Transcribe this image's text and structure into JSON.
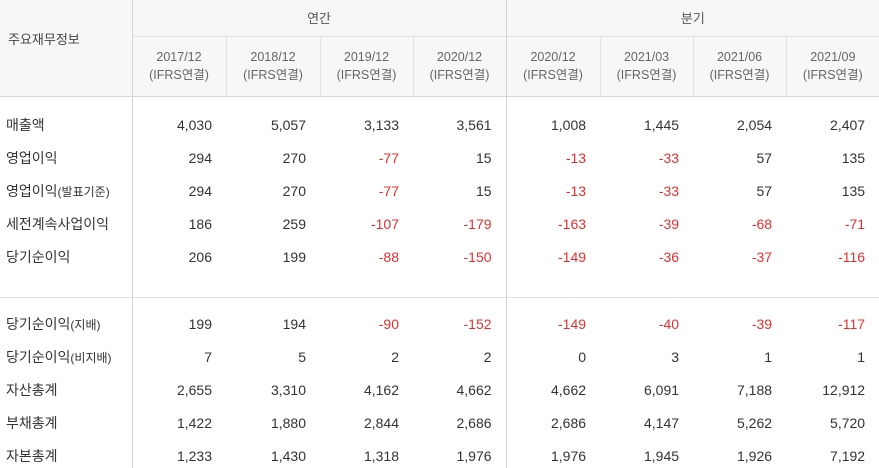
{
  "header": {
    "row_title": "주요재무정보",
    "annual_label": "연간",
    "quarterly_label": "분기",
    "periods": [
      {
        "date": "2017/12",
        "basis": "(IFRS연결)"
      },
      {
        "date": "2018/12",
        "basis": "(IFRS연결)"
      },
      {
        "date": "2019/12",
        "basis": "(IFRS연결)"
      },
      {
        "date": "2020/12",
        "basis": "(IFRS연결)"
      },
      {
        "date": "2020/12",
        "basis": "(IFRS연결)"
      },
      {
        "date": "2021/03",
        "basis": "(IFRS연결)"
      },
      {
        "date": "2021/06",
        "basis": "(IFRS연결)"
      },
      {
        "date": "2021/09",
        "basis": "(IFRS연결)"
      }
    ]
  },
  "rows_group1": [
    {
      "label": "매출액",
      "sub": "",
      "values": [
        "4,030",
        "5,057",
        "3,133",
        "3,561",
        "1,008",
        "1,445",
        "2,054",
        "2,407"
      ]
    },
    {
      "label": "영업이익",
      "sub": "",
      "values": [
        "294",
        "270",
        "-77",
        "15",
        "-13",
        "-33",
        "57",
        "135"
      ]
    },
    {
      "label": "영업이익",
      "sub": "(발표기준)",
      "values": [
        "294",
        "270",
        "-77",
        "15",
        "-13",
        "-33",
        "57",
        "135"
      ]
    },
    {
      "label": "세전계속사업이익",
      "sub": "",
      "values": [
        "186",
        "259",
        "-107",
        "-179",
        "-163",
        "-39",
        "-68",
        "-71"
      ]
    },
    {
      "label": "당기순이익",
      "sub": "",
      "values": [
        "206",
        "199",
        "-88",
        "-150",
        "-149",
        "-36",
        "-37",
        "-116"
      ]
    }
  ],
  "rows_group2": [
    {
      "label": "당기순이익",
      "sub": "(지배)",
      "values": [
        "199",
        "194",
        "-90",
        "-152",
        "-149",
        "-40",
        "-39",
        "-117"
      ]
    },
    {
      "label": "당기순이익",
      "sub": "(비지배)",
      "values": [
        "7",
        "5",
        "2",
        "2",
        "0",
        "3",
        "1",
        "1"
      ]
    },
    {
      "label": "자산총계",
      "sub": "",
      "values": [
        "2,655",
        "3,310",
        "4,162",
        "4,662",
        "4,662",
        "6,091",
        "7,188",
        "12,912"
      ]
    },
    {
      "label": "부채총계",
      "sub": "",
      "values": [
        "1,422",
        "1,880",
        "2,844",
        "2,686",
        "2,686",
        "4,147",
        "5,262",
        "5,720"
      ]
    },
    {
      "label": "자본총계",
      "sub": "",
      "values": [
        "1,233",
        "1,430",
        "1,318",
        "1,976",
        "1,976",
        "1,945",
        "1,926",
        "7,192"
      ]
    }
  ],
  "colors": {
    "negative": "#e62e2e",
    "header_bg": "#f7f7f7"
  }
}
